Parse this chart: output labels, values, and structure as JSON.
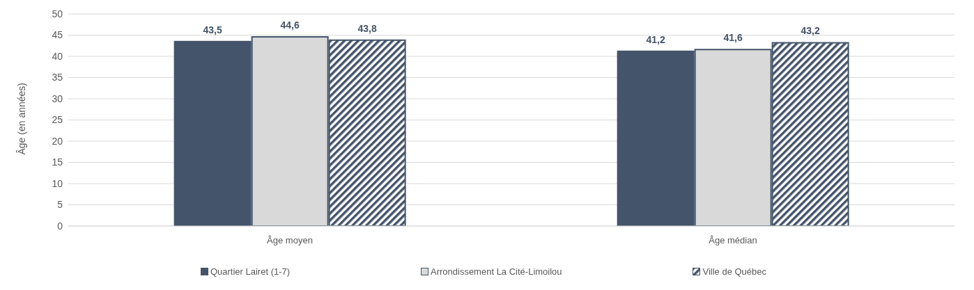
{
  "chart_data": {
    "type": "bar",
    "ylabel": "Âge (en années)",
    "categories": [
      "Âge moyen",
      "Âge médian"
    ],
    "series": [
      {
        "name": "Quartier Lairet (1-7)",
        "color": "#44546a",
        "values": [
          43.5,
          41.2
        ],
        "value_labels": [
          "43,5",
          "41,2"
        ]
      },
      {
        "name": "Arrondissement La Cité-Limoilou",
        "color": "#d9d9d9",
        "values": [
          44.6,
          41.6
        ],
        "value_labels": [
          "44,6",
          "41,6"
        ]
      },
      {
        "name": "Ville de Québec",
        "color": "#44546a",
        "values": [
          43.8,
          43.2
        ],
        "value_labels": [
          "43,8",
          "43,2"
        ]
      }
    ],
    "ylim": [
      0,
      50
    ],
    "yticks": [
      0,
      5,
      10,
      15,
      20,
      25,
      30,
      35,
      40,
      45,
      50
    ],
    "grid": "y",
    "legend": "bottom"
  }
}
